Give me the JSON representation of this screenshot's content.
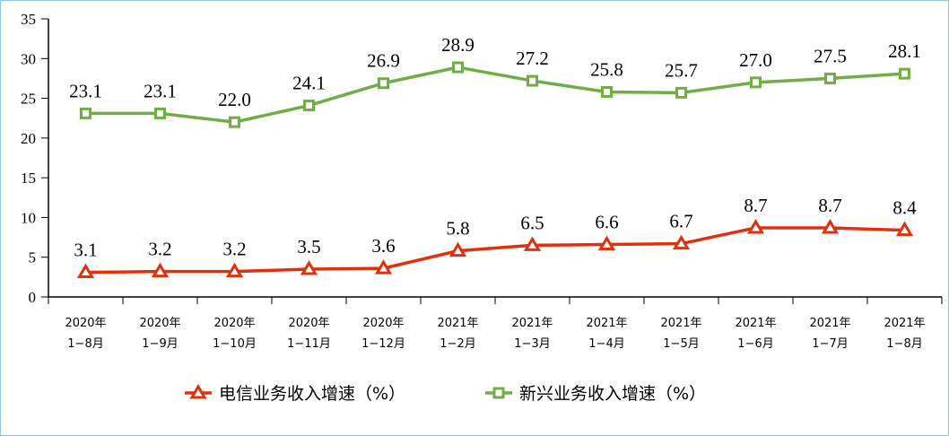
{
  "chart_data": {
    "type": "line",
    "categories": [
      [
        "2020年",
        "1−8月"
      ],
      [
        "2020年",
        "1−9月"
      ],
      [
        "2020年",
        "1−10月"
      ],
      [
        "2020年",
        "1−11月"
      ],
      [
        "2020年",
        "1−12月"
      ],
      [
        "2021年",
        "1−2月"
      ],
      [
        "2021年",
        "1−3月"
      ],
      [
        "2021年",
        "1−4月"
      ],
      [
        "2021年",
        "1−5月"
      ],
      [
        "2021年",
        "1−6月"
      ],
      [
        "2021年",
        "1−7月"
      ],
      [
        "2021年",
        "1−8月"
      ]
    ],
    "ylim": [
      0,
      35
    ],
    "yticks": [
      0,
      5,
      10,
      15,
      20,
      25,
      30,
      35
    ],
    "grid": false,
    "legend_placement": "bottom",
    "series": [
      {
        "name": "电信业务收入增速（%）",
        "color": "#e0300e",
        "marker": "triangle",
        "values": [
          3.1,
          3.2,
          3.2,
          3.5,
          3.6,
          5.8,
          6.5,
          6.6,
          6.7,
          8.7,
          8.7,
          8.4
        ],
        "labels": [
          "3.1",
          "3.2",
          "3.2",
          "3.5",
          "3.6",
          "5.8",
          "6.5",
          "6.6",
          "6.7",
          "8.7",
          "8.7",
          "8.4"
        ]
      },
      {
        "name": "新兴业务收入增速（%）",
        "color": "#70ad47",
        "marker": "square",
        "values": [
          23.1,
          23.1,
          22.0,
          24.1,
          26.9,
          28.9,
          27.2,
          25.8,
          25.7,
          27.0,
          27.5,
          28.1
        ],
        "labels": [
          "23.1",
          "23.1",
          "22.0",
          "24.1",
          "26.9",
          "28.9",
          "27.2",
          "25.8",
          "25.7",
          "27.0",
          "27.5",
          "28.1"
        ]
      }
    ]
  }
}
